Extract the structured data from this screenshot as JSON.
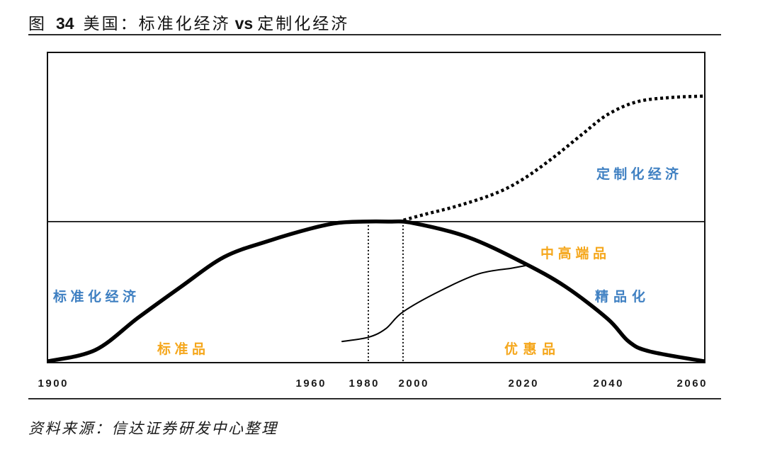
{
  "figure": {
    "label": "图",
    "number": "34"
  },
  "source": "资料来源：信达证券研发中心整理",
  "chart_data": {
    "type": "line",
    "title": {
      "a": "美国：标准化经济",
      "vs": "vs",
      "b": "定制化经济"
    },
    "x_ticks": [
      1900,
      1960,
      1980,
      2000,
      2020,
      2040,
      2060
    ],
    "xlim": [
      1899,
      2063
    ],
    "ylim": [
      0,
      220
    ],
    "grid": false,
    "legend": "none",
    "series": [
      {
        "name": "标准化经济",
        "label_color": "#3f80c2",
        "line_style": "solid",
        "x": [
          1899,
          1910,
          1920,
          1930,
          1940,
          1950,
          1960,
          1970,
          1980,
          1990,
          2000,
          2010,
          2020,
          2030,
          2040,
          2045,
          2050,
          2063
        ],
        "y": [
          1,
          9,
          32,
          54,
          75,
          86,
          95,
          99,
          100,
          100,
          99,
          89,
          71,
          54,
          31,
          15,
          8,
          1
        ]
      },
      {
        "line_style": "solid",
        "x": [
          1972,
          1982,
          1989,
          1996,
          2005,
          2012,
          2018,
          2021
        ],
        "y": [
          15,
          18,
          24,
          36,
          51,
          63,
          67,
          69
        ]
      },
      {
        "name": "定制化经济",
        "label_color": "#3f80c2",
        "line_style": "dotted",
        "x": [
          1994,
          2002,
          2008,
          2015,
          2020,
          2027,
          2034,
          2040,
          2047,
          2055,
          2063
        ],
        "y": [
          100,
          105,
          111,
          120,
          130,
          145,
          162,
          176,
          185,
          188,
          189
        ]
      }
    ],
    "reference_lines": {
      "y": 100,
      "x": [
        1982,
        1996
      ]
    },
    "annotations": [
      {
        "text": "中高端品",
        "color": "#f5a71c"
      },
      {
        "text": "精品化",
        "color": "#3f80c2"
      },
      {
        "text": "标准品",
        "color": "#f5a71c"
      },
      {
        "text": "优惠品",
        "color": "#f5a71c"
      }
    ]
  }
}
